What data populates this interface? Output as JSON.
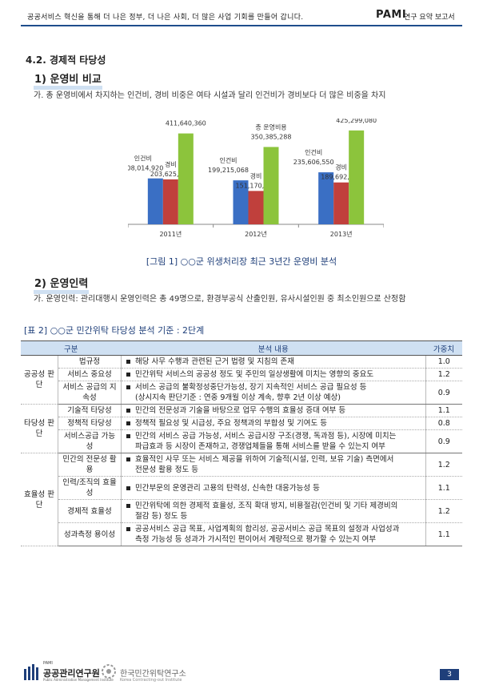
{
  "header": {
    "left_text": "공공서비스 혁신을 통해 더 나은 정부, 더 나은 사회, 더 많은 사업 기회를 만들어 갑니다.",
    "brand": "PAMI",
    "right_text": "연구 요약 보고서"
  },
  "section_title": "4.2. 경제적 타당성",
  "sub1": {
    "title": "1) 운영비 비교",
    "para": "가. 총 운영비에서 차지하는 인건비, 경비 비중은 여타 시설과 달리 인건비가 경비보다 더 많은 비중을 차지"
  },
  "chart_caption": "[그림 1] ○○군 위생처리장 최근 3년간 운영비 분석",
  "chart_data": {
    "type": "bar",
    "categories": [
      "2011년",
      "2012년",
      "2013년"
    ],
    "series": [
      {
        "name": "인건비",
        "values": [
          208014920,
          199215068,
          235606550
        ],
        "labels": [
          "208,014,920",
          "199,215,068",
          "235,606,550"
        ]
      },
      {
        "name": "경비",
        "values": [
          203625440,
          151170220,
          189692530
        ],
        "labels": [
          "203,625,440",
          "151,170,220",
          "189,692,530"
        ]
      },
      {
        "name": "총 운영비용",
        "values": [
          411640360,
          350385288,
          425299080
        ],
        "labels": [
          "411,640,360",
          "350,385,288",
          "425,299,080"
        ]
      }
    ],
    "colors": [
      "#3a6fc4",
      "#c0403c",
      "#8cc43c"
    ],
    "ylim": [
      0,
      450000000
    ],
    "legend": "none"
  },
  "sub2": {
    "title": "2) 운영인력",
    "para": "가. 운영인력: 관리대행시 운영인력은 총 49명으로, 환경부공식 산출인원, 유사시설인원 중 최소인원으로 산정함"
  },
  "table": {
    "title": "[표 2] ○○군 민간위탁 타당성 분석 기준 : 2단계",
    "headers": [
      "구분",
      "분석 내용",
      "가중치"
    ],
    "groups": [
      {
        "name": "공공성 판단",
        "rows": [
          {
            "item": "법규정",
            "desc": "해당 사무 수행과 관련된 근거 법령 및 지침의 존재",
            "desc2": "",
            "w": "1.0"
          },
          {
            "item": "서비스 중요성",
            "desc": "민간위탁 서비스의 공공성 정도 및 주민의 일상생활에 미치는 영향의 중요도",
            "desc2": "",
            "w": "1.2"
          },
          {
            "item": "서비스 공급의 지속성",
            "desc": "서비스 공급의 불확정성중단가능성, 장기 지속적인 서비스 공급 필요성 등",
            "desc2": "(상시지속 판단기준 : 연중 9개월 이상 계속, 향후 2년 이상 예상)",
            "w": "0.9"
          }
        ]
      },
      {
        "name": "타당성 판단",
        "rows": [
          {
            "item": "기술적 타당성",
            "desc": "민간의 전문성과 기술을 바탕으로 업무 수행의 효율성 증대 여부 등",
            "desc2": "",
            "w": "1.1"
          },
          {
            "item": "정책적 타당성",
            "desc": "정책적 필요성 및 시급성, 주요 정책과의 부합성 및 기여도 등",
            "desc2": "",
            "w": "0.8"
          },
          {
            "item": "서비스공급 가능성",
            "desc": "민간의 서비스 공급 가능성, 서비스 공급시장 구조(경쟁, 독과점 등), 시장에 미치는",
            "desc2": "파급효과 등 시장이 존재하고, 경쟁업체들을 통해 서비스를 받을 수 있는지 여부",
            "w": "0.9"
          }
        ]
      },
      {
        "name": "효율성 판단",
        "rows": [
          {
            "item": "민간의 전문성 활용",
            "desc": "효율적인 사무 또는 서비스 제공을 위하여 기술적(시설, 인력, 보유 기술) 측면에서",
            "desc2": "전문성 활용 정도 등",
            "w": "1.2"
          },
          {
            "item": "인력/조직의 효율성",
            "desc": "민간부문의 운영관리 고용의 탄력성, 신속한 대응가능성 등",
            "desc2": "",
            "w": "1.1"
          },
          {
            "item": "경제적 효율성",
            "desc": "민간위탁에 의한 경제적 효율성, 조직 확대 방지, 비용절감(인건비 및 기타 제경비의",
            "desc2": "절감 등) 정도 등",
            "w": "1.2"
          },
          {
            "item": "성과측정 용이성",
            "desc": "공공서비스 공급 목표, 사업계획의 합리성, 공공서비스 공급 목표의 설정과 사업성과",
            "desc2": "측정 가능성 등 성과가 가시적인 편이어서 계량적으로 평가할 수 있는지 여부",
            "w": "1.1"
          }
        ]
      }
    ]
  },
  "footer": {
    "org1_pami": "PAMI",
    "org1": "공공관리연구원",
    "org1_en": "Public Administration Management Institute",
    "org2": "한국민간위탁연구소",
    "org2_en": "Korea Contracting-out Institute",
    "page": "3"
  }
}
